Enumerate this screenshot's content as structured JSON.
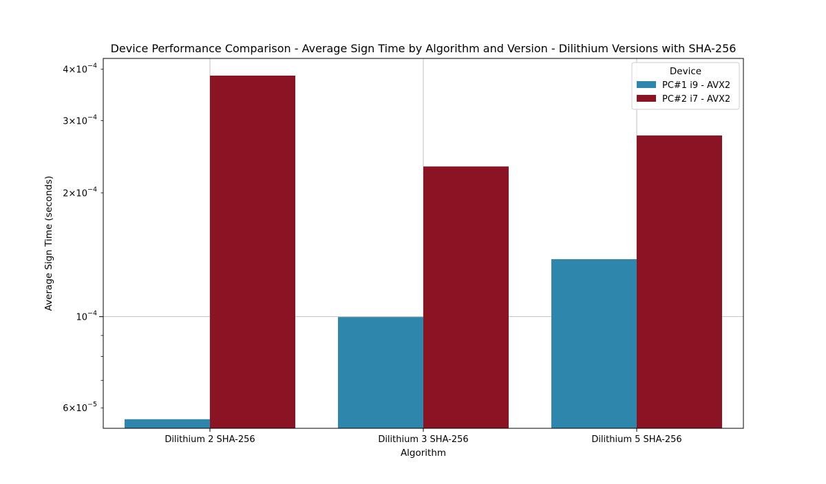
{
  "chart_data": {
    "type": "bar",
    "title": "Device Performance Comparison - Average Sign Time by Algorithm and Version - Dilithium Versions with SHA-256",
    "xlabel": "Algorithm",
    "ylabel": "Average Sign Time (seconds)",
    "yscale": "log",
    "ylim": [
      5.35e-05,
      0.000425
    ],
    "grid": true,
    "categories": [
      "Dilithium 2 SHA-256",
      "Dilithium 3 SHA-256",
      "Dilithium 5 SHA-256"
    ],
    "series": [
      {
        "name": "PC#1 i9 - AVX2",
        "color": "#2e86ad",
        "values": [
          5.63e-05,
          9.98e-05,
          0.000138
        ]
      },
      {
        "name": "PC#2 i7 - AVX2",
        "color": "#8a1424",
        "values": [
          0.000386,
          0.000232,
          0.000276
        ]
      }
    ],
    "y_major_ticks": [
      {
        "value": 0.0001,
        "mantissa": "",
        "exponent": "−4"
      }
    ],
    "y_minor_tick_labels": [
      {
        "value": 6e-05,
        "mantissa": "6",
        "exponent": "−5"
      },
      {
        "value": 0.0002,
        "mantissa": "2",
        "exponent": "−4"
      },
      {
        "value": 0.0003,
        "mantissa": "3",
        "exponent": "−4"
      },
      {
        "value": 0.0004,
        "mantissa": "4",
        "exponent": "−4"
      }
    ],
    "y_minor_ticks_unlabeled": [
      7e-05,
      8e-05,
      9e-05
    ],
    "legend": {
      "title": "Device",
      "position": "top-right"
    }
  }
}
